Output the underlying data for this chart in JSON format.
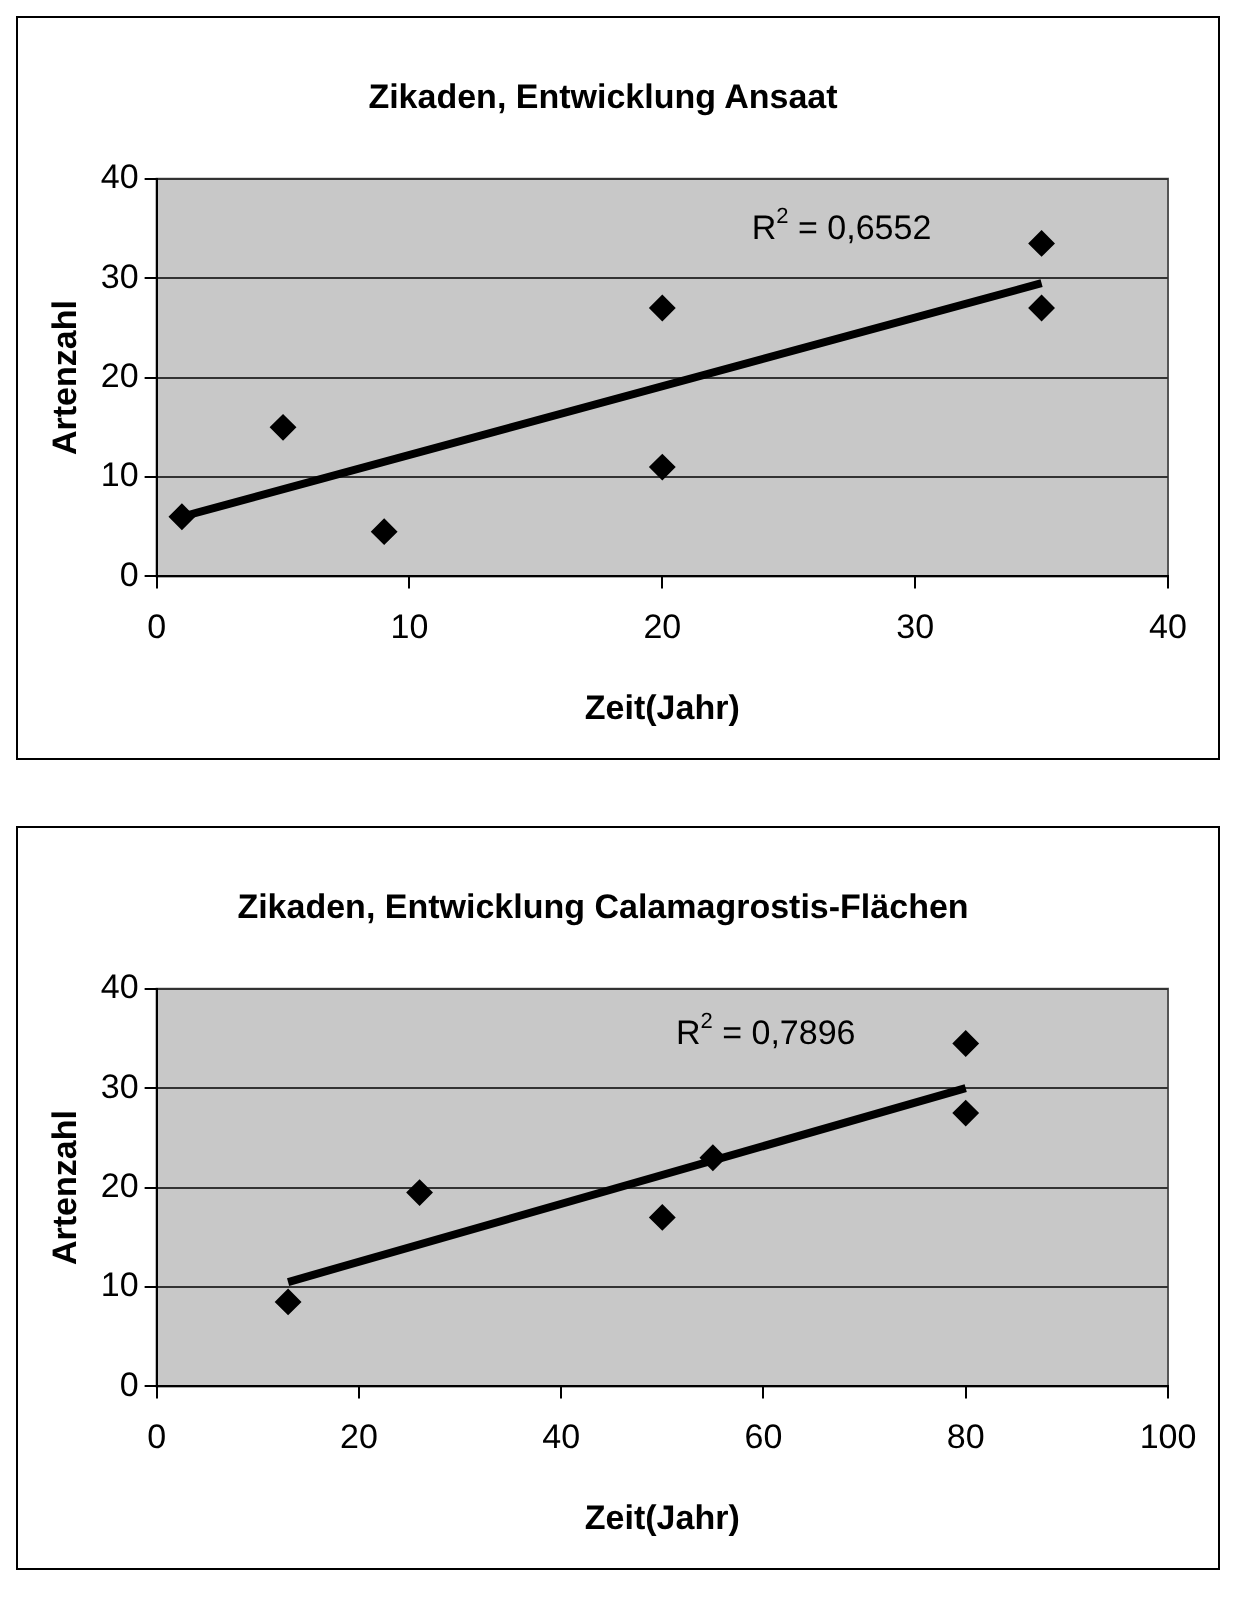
{
  "chart_data": [
    {
      "type": "scatter",
      "title": "Zikaden, Entwicklung Ansaat",
      "xlabel": "Zeit(Jahr)",
      "ylabel": "Artenzahl",
      "xlim": [
        0,
        40
      ],
      "xticks": [
        0,
        10,
        20,
        30,
        40
      ],
      "ylim": [
        0,
        40
      ],
      "yticks": [
        0,
        10,
        20,
        30,
        40
      ],
      "grid": "y",
      "legend": false,
      "marker": "diamond",
      "annotations": [
        "R$^{2}$ = 0,6552"
      ],
      "series": [
        {
          "color": "#000000",
          "x": [
            1,
            5,
            9,
            20,
            20,
            35,
            35
          ],
          "values": [
            6,
            15,
            4.5,
            27,
            11,
            33.5,
            27
          ]
        },
        {
          "type": "line",
          "color": "#000000",
          "marker": "none",
          "x": [
            1,
            35
          ],
          "values": [
            6,
            29.5
          ]
        }
      ]
    },
    {
      "type": "scatter",
      "title": "Zikaden, Entwicklung Calamagrostis-Flächen",
      "xlabel": "Zeit(Jahr)",
      "ylabel": "Artenzahl",
      "xlim": [
        0,
        100
      ],
      "xticks": [
        0,
        20,
        40,
        60,
        80,
        100
      ],
      "ylim": [
        0,
        40
      ],
      "yticks": [
        0,
        10,
        20,
        30,
        40
      ],
      "grid": "y",
      "legend": false,
      "marker": "diamond",
      "annotations": [
        "R$^{2}$ = 0,7896"
      ],
      "series": [
        {
          "color": "#000000",
          "x": [
            13,
            26,
            50,
            55,
            80,
            80
          ],
          "values": [
            8.5,
            19.5,
            17,
            23,
            34.5,
            27.5
          ]
        },
        {
          "type": "line",
          "color": "#000000",
          "marker": "none",
          "x": [
            13,
            80
          ],
          "values": [
            10.5,
            30
          ]
        }
      ]
    }
  ]
}
